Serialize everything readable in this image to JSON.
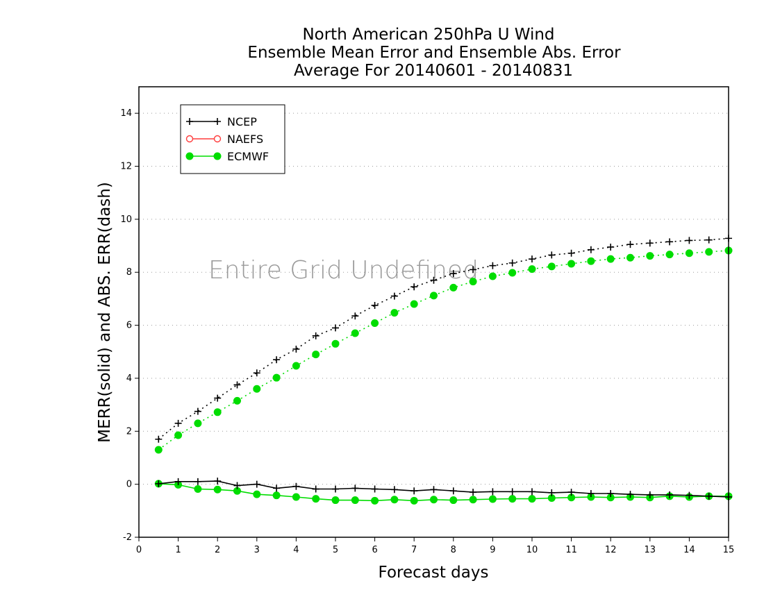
{
  "chart_data": {
    "type": "line",
    "title": [
      "North American 250hPa U Wind",
      "Ensemble Mean Error and Ensemble Abs. Error",
      "Average For 20140601 - 20140831"
    ],
    "xlabel": "Forecast days",
    "ylabel": "MERR(solid) and ABS. ERR(dash)",
    "xlim": [
      0,
      15
    ],
    "ylim": [
      -2,
      15
    ],
    "xticks": [
      "0",
      "1",
      "2",
      "3",
      "4",
      "5",
      "6",
      "7",
      "8",
      "9",
      "10",
      "11",
      "12",
      "13",
      "14",
      "15"
    ],
    "yticks": [
      "-2",
      "0",
      "2",
      "4",
      "6",
      "8",
      "10",
      "12",
      "14"
    ],
    "grid": "horizontal dotted",
    "legend_position": "top-left",
    "annotation": "Entire Grid Undefined",
    "x": [
      0.5,
      1,
      1.5,
      2,
      2.5,
      3,
      3.5,
      4,
      4.5,
      5,
      5.5,
      6,
      6.5,
      7,
      7.5,
      8,
      8.5,
      9,
      9.5,
      10,
      10.5,
      11,
      11.5,
      12,
      12.5,
      13,
      13.5,
      14,
      14.5,
      15
    ],
    "series": [
      {
        "name": "NCEP",
        "color": "#000000",
        "marker": "plus",
        "merr": [
          0.02,
          0.1,
          0.1,
          0.12,
          -0.05,
          0.0,
          -0.15,
          -0.08,
          -0.18,
          -0.18,
          -0.15,
          -0.18,
          -0.2,
          -0.25,
          -0.2,
          -0.25,
          -0.3,
          -0.28,
          -0.28,
          -0.28,
          -0.32,
          -0.3,
          -0.35,
          -0.35,
          -0.38,
          -0.4,
          -0.4,
          -0.42,
          -0.45,
          -0.48
        ],
        "abs_err": [
          1.7,
          2.3,
          2.75,
          3.25,
          3.75,
          4.2,
          4.7,
          5.1,
          5.6,
          5.9,
          6.35,
          6.75,
          7.1,
          7.45,
          7.7,
          7.95,
          8.1,
          8.25,
          8.35,
          8.5,
          8.65,
          8.72,
          8.85,
          8.95,
          9.05,
          9.1,
          9.15,
          9.2,
          9.22,
          9.28
        ]
      },
      {
        "name": "NAEFS",
        "color": "#ff3b3b",
        "marker": "open-circle",
        "merr": [],
        "abs_err": []
      },
      {
        "name": "ECMWF",
        "color": "#00dd00",
        "marker": "filled-circle",
        "merr": [
          0.02,
          -0.02,
          -0.18,
          -0.2,
          -0.25,
          -0.38,
          -0.42,
          -0.48,
          -0.55,
          -0.6,
          -0.6,
          -0.62,
          -0.58,
          -0.62,
          -0.58,
          -0.6,
          -0.58,
          -0.56,
          -0.55,
          -0.55,
          -0.52,
          -0.5,
          -0.48,
          -0.5,
          -0.48,
          -0.5,
          -0.45,
          -0.48,
          -0.45,
          -0.45
        ],
        "abs_err": [
          1.3,
          1.85,
          2.3,
          2.72,
          3.15,
          3.6,
          4.02,
          4.47,
          4.9,
          5.3,
          5.7,
          6.08,
          6.47,
          6.8,
          7.12,
          7.42,
          7.65,
          7.85,
          7.98,
          8.12,
          8.22,
          8.32,
          8.42,
          8.5,
          8.55,
          8.62,
          8.67,
          8.72,
          8.77,
          8.82
        ]
      }
    ]
  }
}
